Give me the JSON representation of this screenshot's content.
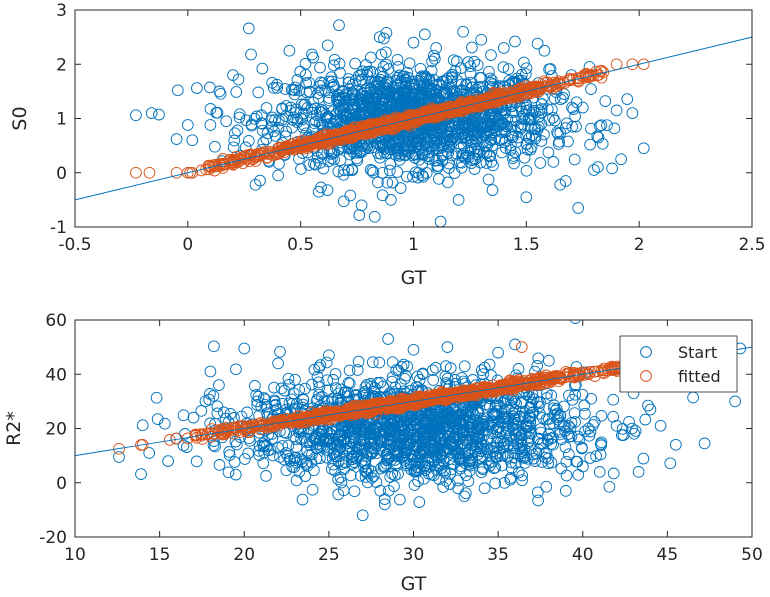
{
  "colors": {
    "start": "#0072BD",
    "fitted": "#D95319",
    "axis": "#262626",
    "identity_line": "#0072BD"
  },
  "chart_data": [
    {
      "type": "scatter",
      "xlabel": "GT",
      "ylabel": "S0",
      "xlim": [
        -0.5,
        2.5
      ],
      "ylim": [
        -1,
        3
      ],
      "xticks": [
        -0.5,
        0,
        0.5,
        1,
        1.5,
        2,
        2.5
      ],
      "xtick_labels": [
        "-0.5",
        "0",
        "0.5",
        "1",
        "1.5",
        "2",
        "2.5"
      ],
      "yticks": [
        -1,
        0,
        1,
        2,
        3
      ],
      "ytick_labels": [
        "-1",
        "0",
        "1",
        "2",
        "3"
      ],
      "grid": false,
      "identity_line": [
        [
          -0.5,
          -0.5
        ],
        [
          2.5,
          2.5
        ]
      ],
      "series": [
        {
          "name": "",
          "marker": "circle",
          "color_key": "start",
          "cloud": {
            "x_mean": 1.0,
            "x_sd": 0.3,
            "y_mean": 1.0,
            "y_sd": 0.45,
            "count": 1600
          },
          "points": [
            [
              -0.23,
              1.06
            ],
            [
              -0.16,
              1.1
            ],
            [
              -0.05,
              0.62
            ],
            [
              0.0,
              0.88
            ],
            [
              0.02,
              0.6
            ],
            [
              0.04,
              1.56
            ],
            [
              0.1,
              0.88
            ],
            [
              0.12,
              0.48
            ],
            [
              0.14,
              1.5
            ],
            [
              0.17,
              0.95
            ],
            [
              0.2,
              1.8
            ],
            [
              0.22,
              0.78
            ],
            [
              0.23,
              1.08
            ],
            [
              0.27,
              2.66
            ],
            [
              0.28,
              2.18
            ],
            [
              0.3,
              -0.22
            ],
            [
              0.33,
              1.92
            ],
            [
              0.36,
              0.2
            ],
            [
              0.4,
              -0.05
            ],
            [
              0.45,
              2.25
            ],
            [
              0.55,
              2.18
            ],
            [
              0.58,
              -0.35
            ],
            [
              0.62,
              2.35
            ],
            [
              0.67,
              2.72
            ],
            [
              0.72,
              -0.42
            ],
            [
              0.76,
              -0.78
            ],
            [
              0.77,
              -0.6
            ],
            [
              0.85,
              2.5
            ],
            [
              0.88,
              2.58
            ],
            [
              0.9,
              -0.5
            ],
            [
              1.0,
              2.4
            ],
            [
              1.05,
              2.55
            ],
            [
              1.1,
              2.3
            ],
            [
              1.12,
              -0.9
            ],
            [
              1.2,
              -0.5
            ],
            [
              1.22,
              2.6
            ],
            [
              1.3,
              2.45
            ],
            [
              1.35,
              -0.32
            ],
            [
              1.4,
              2.3
            ],
            [
              1.45,
              2.42
            ],
            [
              1.5,
              -0.45
            ],
            [
              1.55,
              2.38
            ],
            [
              1.58,
              2.25
            ],
            [
              1.62,
              0.2
            ],
            [
              1.65,
              -0.22
            ],
            [
              1.7,
              1.8
            ],
            [
              1.72,
              0.85
            ],
            [
              1.73,
              -0.65
            ],
            [
              1.75,
              1.2
            ],
            [
              1.78,
              1.95
            ],
            [
              1.8,
              0.05
            ],
            [
              1.82,
              0.65
            ],
            [
              1.85,
              1.32
            ],
            [
              1.88,
              0.08
            ],
            [
              1.9,
              1.15
            ],
            [
              1.92,
              0.25
            ],
            [
              1.97,
              1.1
            ],
            [
              2.02,
              0.45
            ]
          ]
        },
        {
          "name": "",
          "marker": "circle",
          "color_key": "fitted",
          "band": {
            "x_min": 0.05,
            "x_max": 1.85,
            "slope": 1.0,
            "intercept": 0.0,
            "spread": 0.04,
            "count": 900
          },
          "points": [
            [
              -0.23,
              0.0
            ],
            [
              -0.17,
              0.0
            ],
            [
              -0.05,
              0.0
            ],
            [
              0.0,
              0.0
            ],
            [
              0.01,
              0.0
            ],
            [
              0.02,
              0.0
            ],
            [
              0.1,
              0.1
            ],
            [
              0.13,
              0.12
            ],
            [
              0.16,
              0.16
            ],
            [
              0.2,
              0.2
            ],
            [
              1.9,
              2.0
            ],
            [
              1.97,
              2.0
            ],
            [
              2.02,
              2.0
            ]
          ]
        }
      ]
    },
    {
      "type": "scatter",
      "xlabel": "GT",
      "ylabel": "R2*",
      "xlim": [
        10,
        50
      ],
      "ylim": [
        -20,
        60
      ],
      "xticks": [
        10,
        15,
        20,
        25,
        30,
        35,
        40,
        45,
        50
      ],
      "xtick_labels": [
        "10",
        "15",
        "20",
        "25",
        "30",
        "35",
        "40",
        "45",
        "50"
      ],
      "yticks": [
        -20,
        0,
        20,
        40,
        60
      ],
      "ytick_labels": [
        "-20",
        "0",
        "20",
        "40",
        "60"
      ],
      "grid": false,
      "legend_position": "top-right",
      "identity_line": [
        [
          10,
          10
        ],
        [
          50,
          50
        ]
      ],
      "series": [
        {
          "name": "Start",
          "marker": "circle",
          "color_key": "start",
          "cloud": {
            "x_mean": 30,
            "x_sd": 5.0,
            "y_mean": 20,
            "y_sd": 9.5,
            "count": 1600
          },
          "points": [
            [
              12.6,
              9.5
            ],
            [
              13.9,
              3.2
            ],
            [
              14.0,
              21.2
            ],
            [
              15.5,
              8.0
            ],
            [
              16.5,
              18.0
            ],
            [
              17.0,
              24.0
            ],
            [
              18.0,
              41.0
            ],
            [
              18.5,
              36.0
            ],
            [
              19.5,
              3.0
            ],
            [
              20.0,
              49.5
            ],
            [
              21.0,
              28.0
            ],
            [
              22.0,
              44.0
            ],
            [
              23.0,
              38.0
            ],
            [
              25.0,
              47.0
            ],
            [
              27.0,
              -12.0
            ],
            [
              28.5,
              53.0
            ],
            [
              30.0,
              49.0
            ],
            [
              32.0,
              50.0
            ],
            [
              33.0,
              -5.0
            ],
            [
              35.0,
              48.0
            ],
            [
              36.0,
              51.0
            ],
            [
              38.0,
              45.0
            ],
            [
              39.0,
              -3.0
            ],
            [
              40.0,
              6.0
            ],
            [
              41.0,
              4.0
            ],
            [
              42.0,
              21.0
            ],
            [
              43.0,
              33.0
            ],
            [
              43.3,
              4.0
            ],
            [
              44.0,
              27.0
            ],
            [
              44.6,
              21.0
            ],
            [
              45.5,
              14.0
            ],
            [
              47.2,
              14.5
            ],
            [
              49.0,
              30.0
            ],
            [
              49.3,
              49.5
            ]
          ]
        },
        {
          "name": "fitted",
          "marker": "circle",
          "color_key": "fitted",
          "band": {
            "x_min": 16.5,
            "x_max": 43.0,
            "slope": 1.0,
            "intercept": 0.0,
            "spread": 0.7,
            "count": 900
          },
          "points": [
            [
              12.6,
              12.5
            ],
            [
              13.9,
              13.9
            ],
            [
              14.0,
              14.0
            ],
            [
              15.6,
              15.8
            ],
            [
              16.0,
              16.3
            ],
            [
              36.4,
              50.0
            ],
            [
              37.5,
              37.0
            ],
            [
              43.0,
              43.5
            ]
          ]
        }
      ]
    }
  ]
}
